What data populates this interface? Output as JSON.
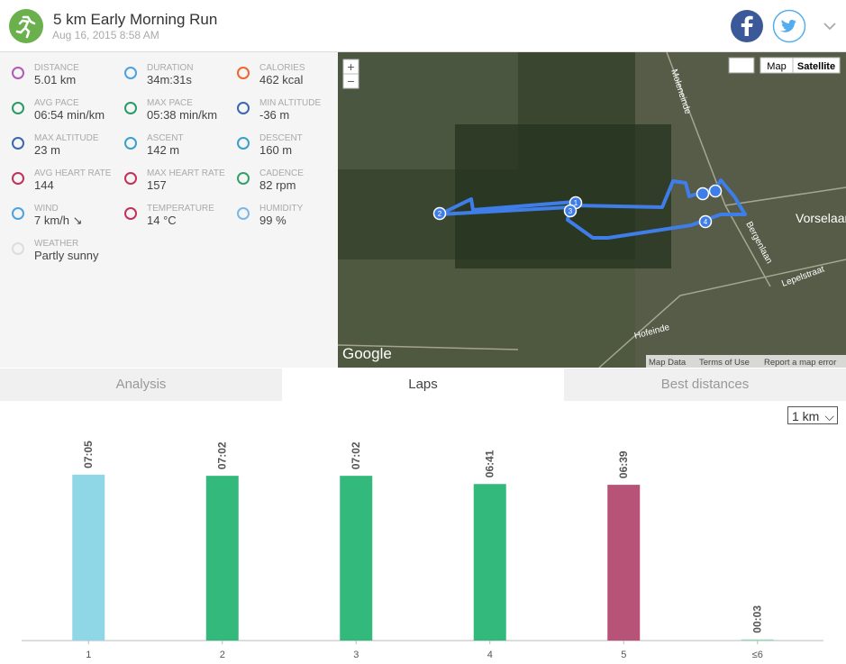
{
  "header": {
    "title": "5 km Early Morning Run",
    "date": "Aug 16, 2015 8:58 AM"
  },
  "stats": [
    {
      "label": "DISTANCE",
      "value": "5.01 km"
    },
    {
      "label": "DURATION",
      "value": "34m:31s"
    },
    {
      "label": "CALORIES",
      "value": "462 kcal"
    },
    {
      "label": "AVG PACE",
      "value": "06:54 min/km"
    },
    {
      "label": "MAX PACE",
      "value": "05:38 min/km"
    },
    {
      "label": "MIN ALTITUDE",
      "value": "-36 m"
    },
    {
      "label": "MAX ALTITUDE",
      "value": "23 m"
    },
    {
      "label": "ASCENT",
      "value": "142 m"
    },
    {
      "label": "DESCENT",
      "value": "160 m"
    },
    {
      "label": "AVG HEART RATE",
      "value": "144"
    },
    {
      "label": "MAX HEART RATE",
      "value": "157"
    },
    {
      "label": "CADENCE",
      "value": "82 rpm"
    },
    {
      "label": "WIND",
      "value": "7 km/h ↘"
    },
    {
      "label": "TEMPERATURE",
      "value": "14 °C"
    },
    {
      "label": "HUMIDITY",
      "value": "99 %"
    },
    {
      "label": "WEATHER",
      "value": "Partly sunny"
    }
  ],
  "map": {
    "zoom": [
      "+",
      "−"
    ],
    "buttons": [
      "Map",
      "Satellite"
    ],
    "places": [
      "Vorselaar",
      "Moleneinde",
      "Lepelstraat",
      "Hofeinde",
      "Bergenlaan"
    ],
    "markers": [
      "1",
      "2",
      "3",
      "4"
    ],
    "logo": "Google",
    "footer": [
      "Map Data",
      "Terms of Use",
      "Report a map error"
    ]
  },
  "tabs": [
    "Analysis",
    "Laps",
    "Best distances"
  ],
  "lap_unit": "1 km",
  "chart_data": {
    "type": "bar",
    "categories": [
      "1",
      "2",
      "3",
      "4",
      "5",
      "≤6"
    ],
    "values": [
      425,
      422,
      422,
      401,
      399,
      3
    ],
    "value_labels": [
      "07:05",
      "07:02",
      "07:02",
      "06:41",
      "06:39",
      "00:03"
    ],
    "colors": [
      "#8fd6e6",
      "#33b97b",
      "#33b97b",
      "#33b97b",
      "#b85378",
      "#96d9b8"
    ],
    "ylim": [
      0,
      450
    ]
  }
}
